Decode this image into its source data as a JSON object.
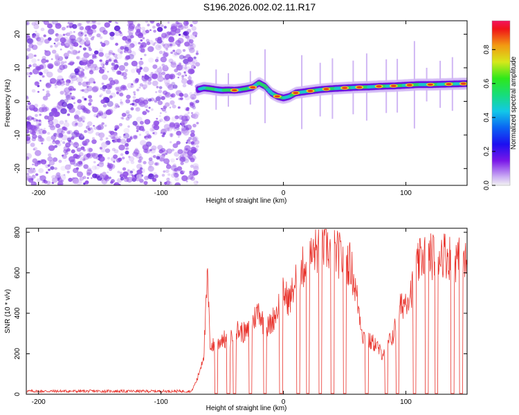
{
  "title": "S196.2026.002.02.11.R17",
  "colors": {
    "snr_line": "#e8312a",
    "ridge_low": "#6a0fe0",
    "ridge_mid": "#19c8c8",
    "ridge_high": "#e83a1a",
    "noise": "#8f4de6"
  },
  "chart_data": [
    {
      "type": "heatmap",
      "title": "S196.2026.002.02.11.R17",
      "xlabel": "Height of straight line (km)",
      "ylabel": "Frequency (Hz)",
      "xlim": [
        -210,
        150
      ],
      "ylim": [
        -25,
        24
      ],
      "xticks": [
        -200,
        -100,
        0,
        100
      ],
      "xtick_labels": [
        "-200",
        "-100",
        "0",
        "100"
      ],
      "yticks": [
        20,
        10,
        0,
        -10,
        -20
      ],
      "ytick_labels": [
        "20",
        "10",
        "0",
        "-10",
        "-20"
      ],
      "noise_region_x": [
        -210,
        -70
      ],
      "ridge": {
        "x": [
          -70,
          -65,
          -60,
          -55,
          -50,
          -45,
          -40,
          -35,
          -30,
          -25,
          -20,
          -15,
          -10,
          -5,
          0,
          5,
          10,
          20,
          30,
          40,
          50,
          60,
          70,
          80,
          90,
          100,
          110,
          120,
          130,
          140,
          150
        ],
        "y": [
          3.5,
          4.0,
          3.8,
          3.5,
          3.3,
          3.4,
          3.3,
          3.5,
          3.8,
          4.2,
          5.5,
          4.5,
          2.5,
          1.5,
          1.0,
          1.5,
          2.5,
          3.0,
          3.5,
          3.8,
          4.0,
          4.2,
          4.3,
          4.5,
          4.6,
          4.8,
          5.0,
          5.0,
          5.1,
          5.2,
          5.3
        ]
      },
      "colorbar": {
        "label": "Normalized spectral amplitude",
        "ticks": [
          0.0,
          0.2,
          0.4,
          0.6,
          0.8
        ],
        "tick_labels": [
          "0.0",
          "0.2",
          "0.4",
          "0.6",
          "0.8"
        ],
        "range": [
          0,
          0.97
        ]
      }
    },
    {
      "type": "line",
      "xlabel": "Height of straight line (km)",
      "ylabel": "SNR (10 * v/v)",
      "xlim": [
        -210,
        150
      ],
      "ylim": [
        0,
        820
      ],
      "xticks": [
        -200,
        -100,
        0,
        100
      ],
      "xtick_labels": [
        "-200",
        "-100",
        "0",
        "100"
      ],
      "yticks": [
        0,
        200,
        400,
        600,
        800
      ],
      "ytick_labels": [
        "0",
        "200",
        "400",
        "600",
        "800"
      ],
      "series": [
        {
          "name": "SNR",
          "x": [
            -210,
            -75,
            -70,
            -65,
            -62,
            -60,
            -55,
            -50,
            -45,
            -40,
            -35,
            -30,
            -25,
            -20,
            -15,
            -10,
            -5,
            0,
            5,
            10,
            15,
            20,
            25,
            30,
            35,
            40,
            45,
            50,
            55,
            60,
            65,
            70,
            75,
            80,
            85,
            90,
            95,
            100,
            105,
            110,
            115,
            120,
            125,
            130,
            135,
            140,
            145,
            150
          ],
          "values": [
            15,
            15,
            80,
            200,
            580,
            250,
            230,
            280,
            250,
            320,
            310,
            300,
            360,
            420,
            320,
            350,
            420,
            500,
            460,
            560,
            620,
            650,
            700,
            720,
            730,
            700,
            690,
            660,
            640,
            480,
            290,
            260,
            250,
            200,
            240,
            300,
            420,
            470,
            520,
            640,
            700,
            680,
            690,
            700,
            680,
            670,
            660,
            640
          ]
        }
      ],
      "dropouts_x": [
        -55,
        -45,
        -40,
        -27,
        -15,
        -2,
        12,
        20,
        30,
        40,
        50,
        68,
        84,
        93,
        107,
        117,
        125,
        138,
        145
      ]
    }
  ]
}
